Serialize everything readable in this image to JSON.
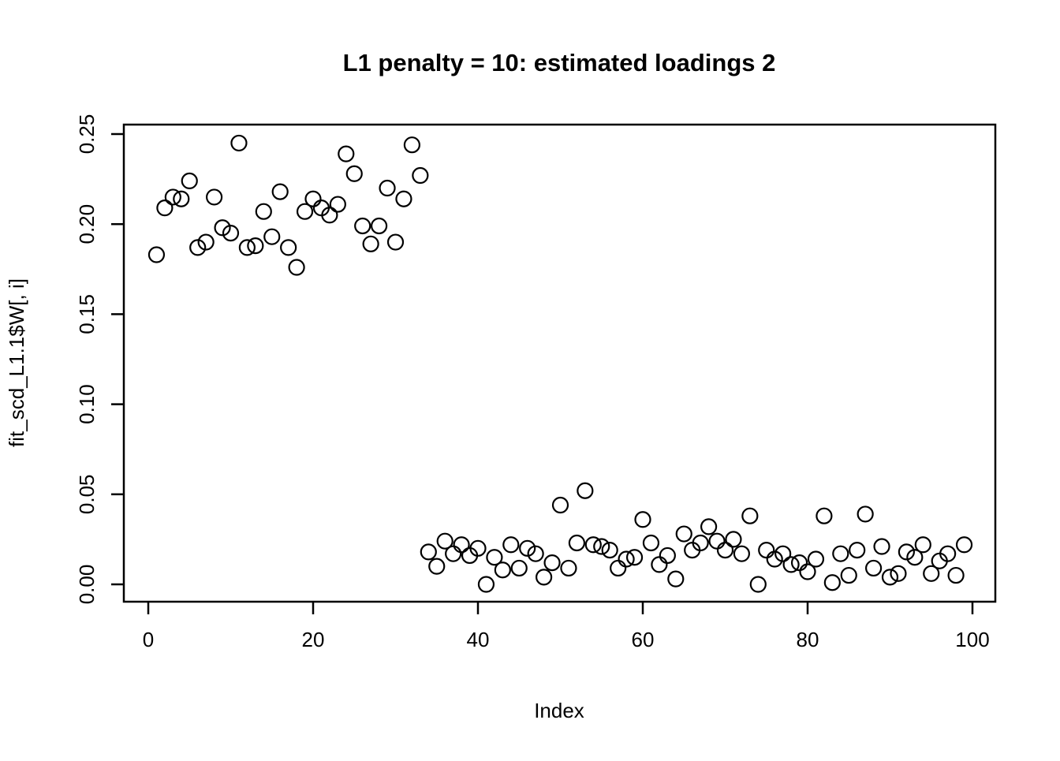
{
  "figure": {
    "background": "#ffffff",
    "foreground": "#000000"
  },
  "chart_data": {
    "type": "scatter",
    "title": "L1 penalty = 10: estimated loadings 2",
    "xlabel": "Index",
    "ylabel": "fit_scd_L1.1$W[, i]",
    "marker": "open-circle",
    "grid": false,
    "legend": false,
    "x_is_index_from_1": true,
    "n_points": 99,
    "xlim": [
      -3,
      103
    ],
    "ylim": [
      0.0,
      0.25
    ],
    "x_ticks": [
      0,
      20,
      40,
      60,
      80,
      100
    ],
    "y_ticks": [
      0.0,
      0.05,
      0.1,
      0.15,
      0.2,
      0.25
    ],
    "y_tick_labels": [
      "0.00",
      "0.05",
      "0.10",
      "0.15",
      "0.20",
      "0.25"
    ],
    "values": [
      0.183,
      0.209,
      0.215,
      0.214,
      0.224,
      0.187,
      0.19,
      0.215,
      0.198,
      0.195,
      0.245,
      0.187,
      0.188,
      0.207,
      0.193,
      0.218,
      0.187,
      0.176,
      0.207,
      0.214,
      0.209,
      0.205,
      0.211,
      0.239,
      0.228,
      0.199,
      0.189,
      0.199,
      0.22,
      0.19,
      0.214,
      0.244,
      0.227,
      0.018,
      0.01,
      0.024,
      0.017,
      0.022,
      0.016,
      0.02,
      0.0,
      0.015,
      0.008,
      0.022,
      0.009,
      0.02,
      0.017,
      0.004,
      0.012,
      0.044,
      0.009,
      0.023,
      0.052,
      0.022,
      0.021,
      0.019,
      0.009,
      0.014,
      0.015,
      0.036,
      0.023,
      0.011,
      0.016,
      0.003,
      0.028,
      0.019,
      0.023,
      0.032,
      0.024,
      0.019,
      0.025,
      0.017,
      0.038,
      0.0,
      0.019,
      0.014,
      0.017,
      0.011,
      0.012,
      0.007,
      0.014,
      0.038,
      0.001,
      0.017,
      0.005,
      0.019,
      0.039,
      0.009,
      0.021,
      0.004,
      0.006,
      0.018,
      0.015,
      0.022,
      0.006,
      0.013,
      0.017,
      0.005,
      0.022
    ]
  }
}
